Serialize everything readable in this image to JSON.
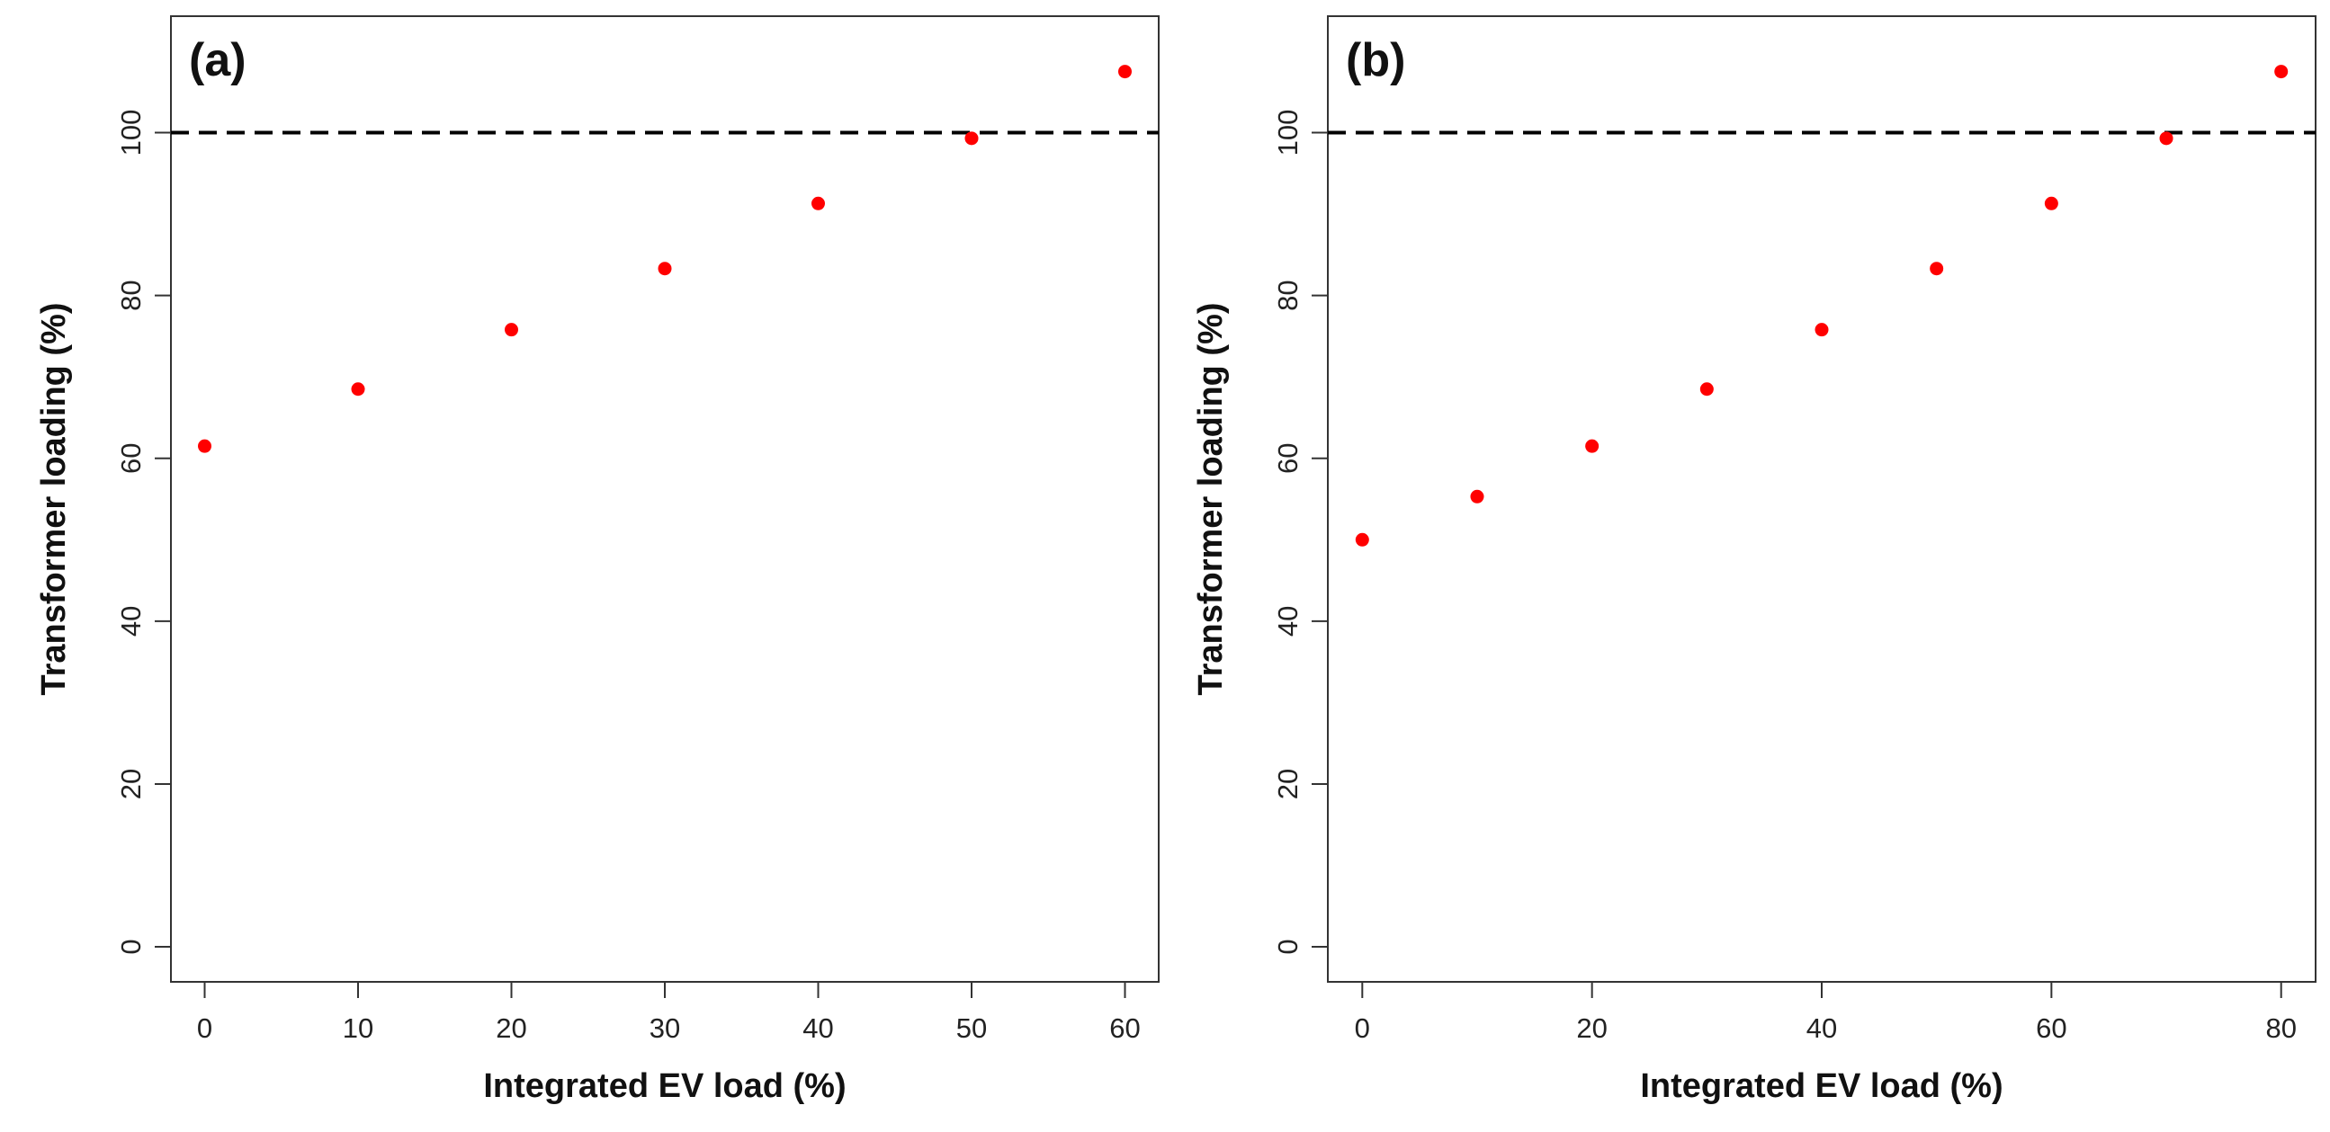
{
  "chart_data": [
    {
      "type": "scatter",
      "panel_label": "(a)",
      "xlabel": "Integrated EV load (%)",
      "ylabel": "Transformer loading (%)",
      "x": [
        0,
        10,
        20,
        30,
        40,
        50,
        60
      ],
      "y": [
        61.5,
        68.5,
        75.8,
        83.3,
        91.3,
        99.3,
        107.5
      ],
      "xticks": [
        0,
        10,
        20,
        30,
        40,
        50,
        60
      ],
      "yticks": [
        0,
        20,
        40,
        60,
        80,
        100
      ],
      "xlim": [
        -2.2,
        62.2
      ],
      "ylim": [
        -4.3,
        114.3
      ],
      "reference_line": {
        "y": 100,
        "style": "dashed",
        "color": "#000000"
      },
      "marker_color": "#ff0000",
      "grid": false,
      "legend": "none"
    },
    {
      "type": "scatter",
      "panel_label": "(b)",
      "xlabel": "Integrated EV load (%)",
      "ylabel": "Transformer loading (%)",
      "x": [
        0,
        10,
        20,
        30,
        40,
        50,
        60,
        70,
        80
      ],
      "y": [
        50,
        55.3,
        61.5,
        68.5,
        75.8,
        83.3,
        91.3,
        99.3,
        107.5
      ],
      "xticks": [
        0,
        20,
        40,
        60,
        80
      ],
      "yticks": [
        0,
        20,
        40,
        60,
        80,
        100
      ],
      "xlim": [
        -3.0,
        83.0
      ],
      "ylim": [
        -4.3,
        114.3
      ],
      "reference_line": {
        "y": 100,
        "style": "dashed",
        "color": "#000000"
      },
      "marker_color": "#ff0000",
      "grid": false,
      "legend": "none"
    }
  ]
}
